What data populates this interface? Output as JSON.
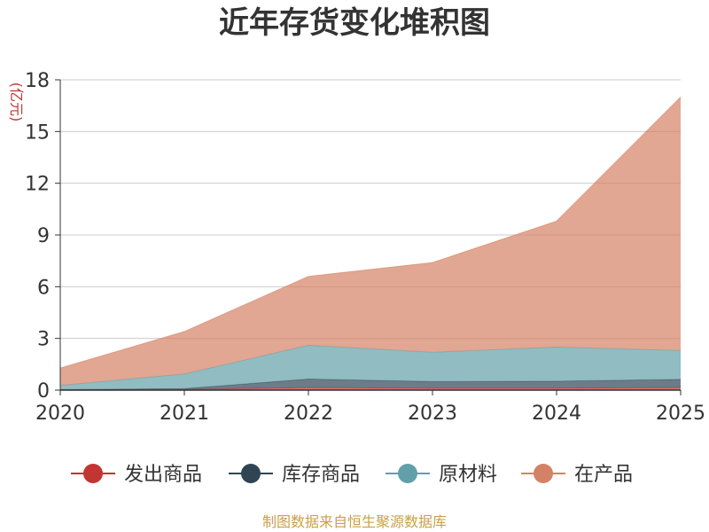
{
  "chart_data": {
    "type": "area",
    "stacked": true,
    "title": "近年存货变化堆积图",
    "ylabel": "(亿元)",
    "xlabel": "",
    "x": [
      "2020",
      "2021",
      "2022",
      "2023",
      "2024",
      "2025"
    ],
    "ylim": [
      0,
      18
    ],
    "yticks": [
      0,
      3,
      6,
      9,
      12,
      15,
      18
    ],
    "grid": true,
    "legend_position": "bottom",
    "series": [
      {
        "name": "发出商品",
        "color": "#c23531",
        "values": [
          0.03,
          0.04,
          0.15,
          0.12,
          0.12,
          0.15
        ]
      },
      {
        "name": "库存商品",
        "color": "#2f4554",
        "values": [
          0.0,
          0.05,
          0.5,
          0.38,
          0.4,
          0.48
        ]
      },
      {
        "name": "原材料",
        "color": "#61a0a8",
        "values": [
          0.25,
          0.85,
          1.95,
          1.7,
          1.98,
          1.67
        ]
      },
      {
        "name": "在产品",
        "color": "#d48265",
        "values": [
          1.0,
          2.46,
          4.0,
          5.2,
          7.3,
          14.7
        ]
      }
    ]
  },
  "source": "制图数据来自恒生聚源数据库",
  "colors": {
    "text": "#333333",
    "ylabel": "#c23531",
    "source": "#c9a04a",
    "grid": "#cccccc"
  }
}
